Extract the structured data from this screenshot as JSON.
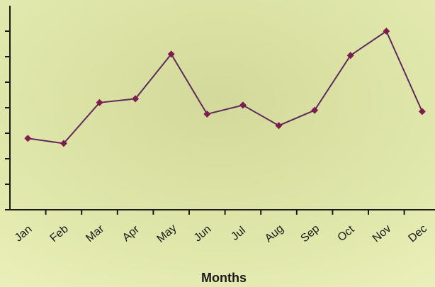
{
  "chart_data": {
    "type": "line",
    "x_label": "Months",
    "categories": [
      "Jan",
      "Feb",
      "Mar",
      "Apr",
      "May",
      "Jun",
      "Jul",
      "Aug",
      "Sep",
      "Oct",
      "Nov",
      "Dec"
    ],
    "values": [
      2.8,
      2.6,
      4.2,
      4.35,
      6.1,
      3.75,
      4.1,
      3.3,
      3.9,
      6.05,
      7.0,
      3.85
    ],
    "color": "#5e2a5c",
    "marker_color": "#7d1d4f",
    "ylim": [
      0,
      8
    ],
    "yticks": [
      0,
      1,
      2,
      3,
      4,
      5,
      6,
      7
    ]
  }
}
